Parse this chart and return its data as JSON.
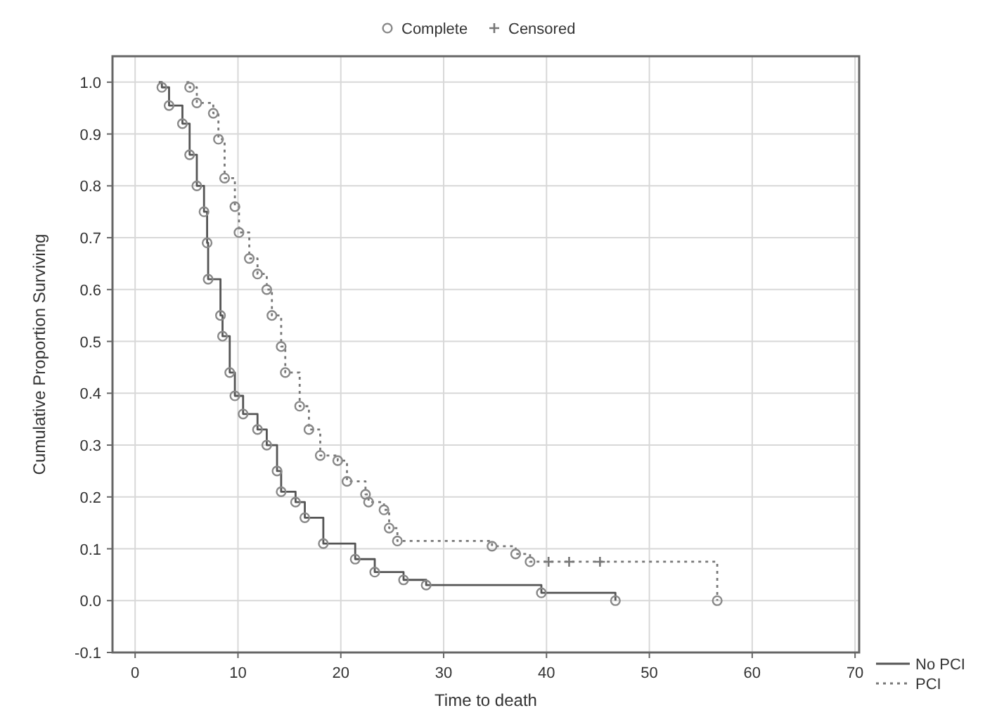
{
  "chart_data": {
    "type": "step",
    "xlabel": "Time to death",
    "ylabel": "Cumulative Proportion Surviving",
    "xlim": [
      -2.2,
      70.4
    ],
    "ylim": [
      -0.1,
      1.05
    ],
    "xticks": [
      0,
      10,
      20,
      30,
      40,
      50,
      60,
      70
    ],
    "yticks": [
      {
        "value": -0.1,
        "label": "-0.1"
      },
      {
        "value": 0,
        "label": "0.0"
      },
      {
        "value": 0.1,
        "label": "0.1"
      },
      {
        "value": 0.2,
        "label": "0.2"
      },
      {
        "value": 0.3,
        "label": "0.3"
      },
      {
        "value": 0.4,
        "label": "0.4"
      },
      {
        "value": 0.5,
        "label": "0.5"
      },
      {
        "value": 0.6,
        "label": "0.6"
      },
      {
        "value": 0.7,
        "label": "0.7"
      },
      {
        "value": 0.8,
        "label": "0.8"
      },
      {
        "value": 0.9,
        "label": "0.9"
      },
      {
        "value": 1,
        "label": "1.0"
      }
    ],
    "grid": true,
    "legend": "bottom right",
    "series": [
      {
        "name": "No PCI",
        "color": "#555555",
        "line_style": "solid",
        "x": [
          2.3,
          2.6,
          3.3,
          4.6,
          5.3,
          6.0,
          6.7,
          7.0,
          7.1,
          8.3,
          8.5,
          9.2,
          9.7,
          10.5,
          11.9,
          12.8,
          13.8,
          14.2,
          15.6,
          16.5,
          18.3,
          21.4,
          23.3,
          26.1,
          28.3,
          39.5,
          46.7
        ],
        "values": [
          1.0,
          0.99,
          0.955,
          0.92,
          0.86,
          0.8,
          0.75,
          0.69,
          0.62,
          0.55,
          0.51,
          0.44,
          0.395,
          0.36,
          0.33,
          0.3,
          0.25,
          0.21,
          0.19,
          0.16,
          0.11,
          0.08,
          0.055,
          0.04,
          0.03,
          0.015,
          0.0
        ]
      },
      {
        "name": "PCI",
        "color": "#777777",
        "line_style": "dotted",
        "x": [
          5.0,
          5.3,
          6.0,
          7.6,
          8.1,
          8.7,
          9.7,
          10.1,
          11.1,
          11.9,
          12.8,
          13.3,
          14.2,
          14.6,
          16.0,
          16.9,
          18.0,
          19.7,
          20.6,
          22.4,
          22.7,
          24.2,
          24.7,
          25.5,
          34.7,
          37.0,
          38.4,
          56.6
        ],
        "values": [
          1.0,
          0.99,
          0.96,
          0.94,
          0.89,
          0.815,
          0.76,
          0.71,
          0.66,
          0.63,
          0.6,
          0.55,
          0.49,
          0.44,
          0.375,
          0.33,
          0.28,
          0.27,
          0.23,
          0.205,
          0.19,
          0.175,
          0.14,
          0.115,
          0.105,
          0.09,
          0.075,
          0.0
        ]
      },
      {
        "name": "Complete",
        "type": "scatter",
        "color": "#888888",
        "marker": "circle",
        "x": [
          2.6,
          3.3,
          4.6,
          5.3,
          6.0,
          6.7,
          7.0,
          7.1,
          8.3,
          8.5,
          9.2,
          9.7,
          10.5,
          11.9,
          12.8,
          13.8,
          14.2,
          15.6,
          16.5,
          18.3,
          21.4,
          23.3,
          26.1,
          28.3,
          39.5,
          46.7,
          5.3,
          6.0,
          7.6,
          8.1,
          8.7,
          9.7,
          10.1,
          11.1,
          11.9,
          12.8,
          13.3,
          14.2,
          14.6,
          16.0,
          16.9,
          18.0,
          19.7,
          20.6,
          22.4,
          22.7,
          24.2,
          24.7,
          25.5,
          34.7,
          37.0,
          38.4,
          56.6
        ],
        "values": [
          0.99,
          0.955,
          0.92,
          0.86,
          0.8,
          0.75,
          0.69,
          0.62,
          0.55,
          0.51,
          0.44,
          0.395,
          0.36,
          0.33,
          0.3,
          0.25,
          0.21,
          0.19,
          0.16,
          0.11,
          0.08,
          0.055,
          0.04,
          0.03,
          0.015,
          0.0,
          0.99,
          0.96,
          0.94,
          0.89,
          0.815,
          0.76,
          0.71,
          0.66,
          0.63,
          0.6,
          0.55,
          0.49,
          0.44,
          0.375,
          0.33,
          0.28,
          0.27,
          0.23,
          0.205,
          0.19,
          0.175,
          0.14,
          0.115,
          0.105,
          0.09,
          0.075,
          0.0
        ]
      },
      {
        "name": "Censored",
        "type": "scatter",
        "color": "#777777",
        "marker": "cross",
        "x": [
          40.2,
          42.2,
          45.2
        ],
        "values": [
          0.075,
          0.075,
          0.075
        ]
      }
    ]
  }
}
